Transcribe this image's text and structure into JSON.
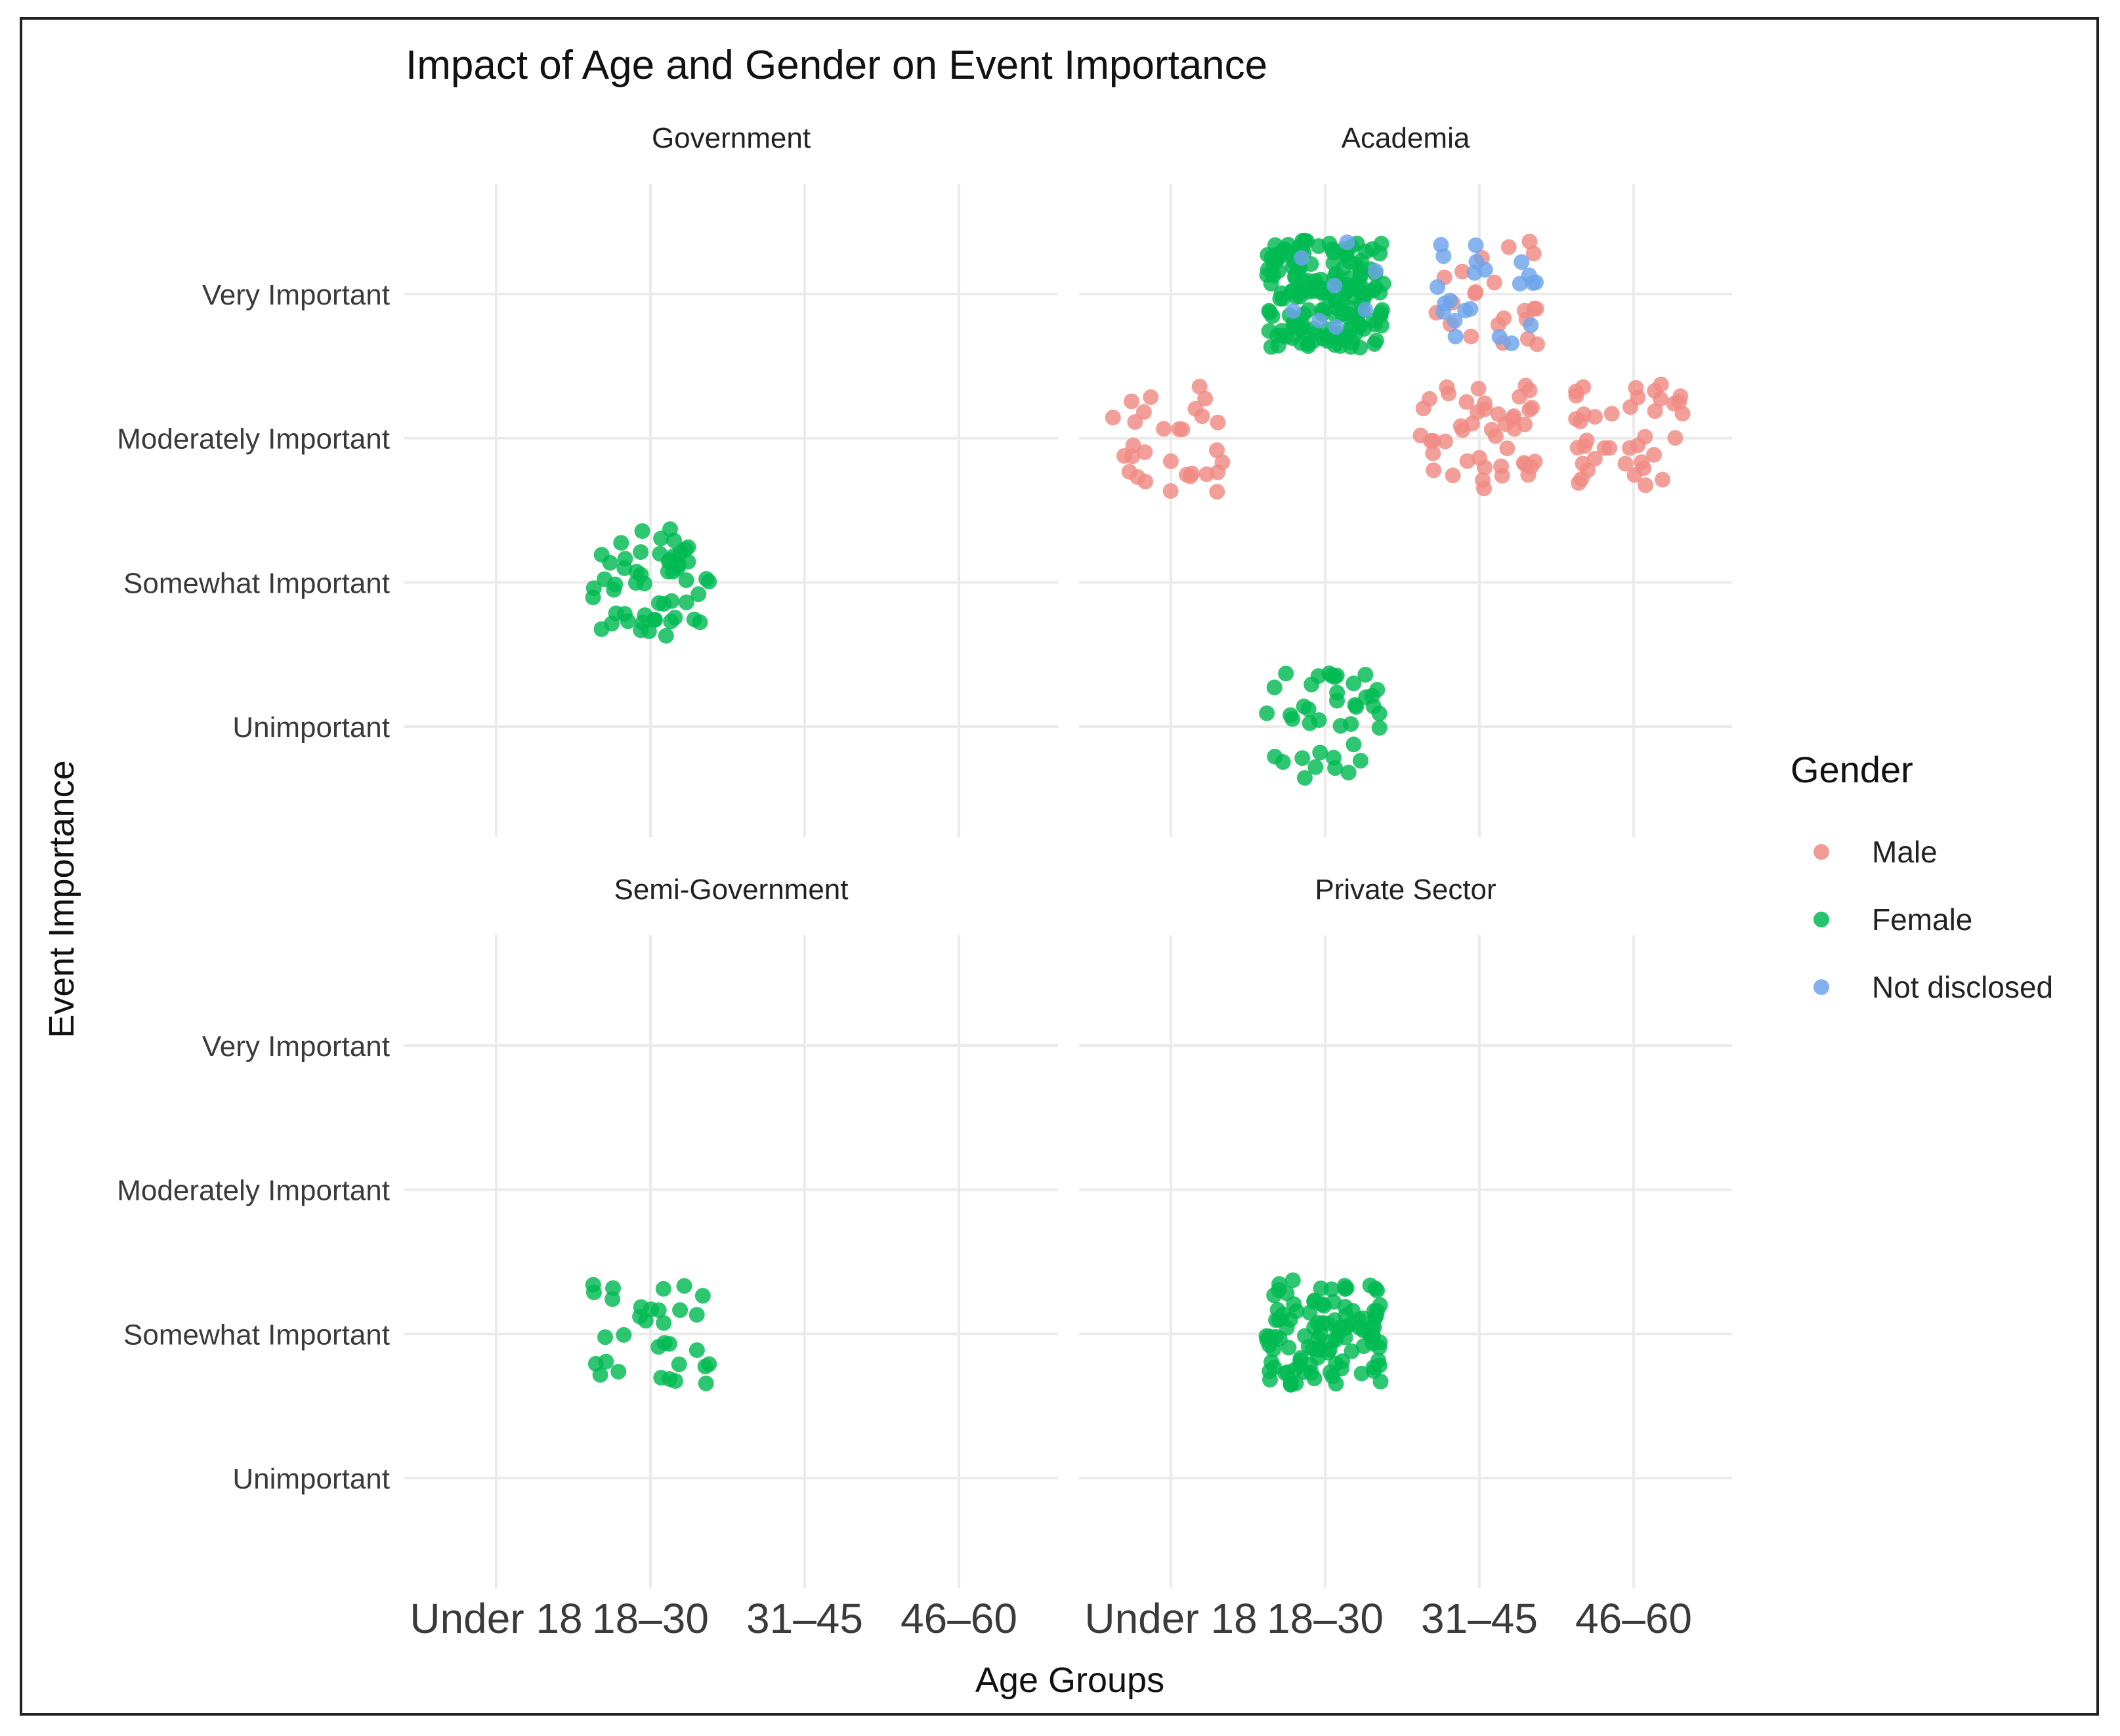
{
  "chart_data": {
    "type": "scatter",
    "title": "Impact of Age and Gender on Event Importance",
    "xlabel": "Age Groups",
    "ylabel": "Event Importance",
    "x_categories": [
      "Under 18",
      "18–30",
      "31–45",
      "46–60"
    ],
    "y_categories": [
      "Unimportant",
      "Somewhat Important",
      "Moderately Important",
      "Very Important"
    ],
    "legend": {
      "title": "Gender",
      "position": "right",
      "entries": [
        {
          "label": "Male",
          "color": "#f08a82"
        },
        {
          "label": "Female",
          "color": "#00ba52"
        },
        {
          "label": "Not disclosed",
          "color": "#6da3ea"
        }
      ]
    },
    "panels": [
      {
        "title": "Government",
        "groups": [
          {
            "gender": "Female",
            "age_group": "18–30",
            "importance": "Somewhat Important",
            "n": 55
          }
        ]
      },
      {
        "title": "Academia",
        "groups": [
          {
            "gender": "Female",
            "age_group": "18–30",
            "importance": "Very Important",
            "n": 170
          },
          {
            "gender": "Female",
            "age_group": "18–30",
            "importance": "Unimportant",
            "n": 40
          },
          {
            "gender": "Male",
            "age_group": "Under 18",
            "importance": "Moderately Important",
            "n": 30
          },
          {
            "gender": "Male",
            "age_group": "31–45",
            "importance": "Very Important",
            "n": 22
          },
          {
            "gender": "Male",
            "age_group": "31–45",
            "importance": "Moderately Important",
            "n": 45
          },
          {
            "gender": "Male",
            "age_group": "46–60",
            "importance": "Moderately Important",
            "n": 40
          },
          {
            "gender": "Not disclosed",
            "age_group": "31–45",
            "importance": "Very Important",
            "n": 22
          },
          {
            "gender": "Not disclosed",
            "age_group": "18–30",
            "importance": "Very Important",
            "n": 8
          }
        ]
      },
      {
        "title": "Semi-Government",
        "groups": [
          {
            "gender": "Female",
            "age_group": "18–30",
            "importance": "Somewhat Important",
            "n": 32
          }
        ]
      },
      {
        "title": "Private Sector",
        "groups": [
          {
            "gender": "Female",
            "age_group": "18–30",
            "importance": "Somewhat Important",
            "n": 110
          }
        ]
      }
    ]
  }
}
